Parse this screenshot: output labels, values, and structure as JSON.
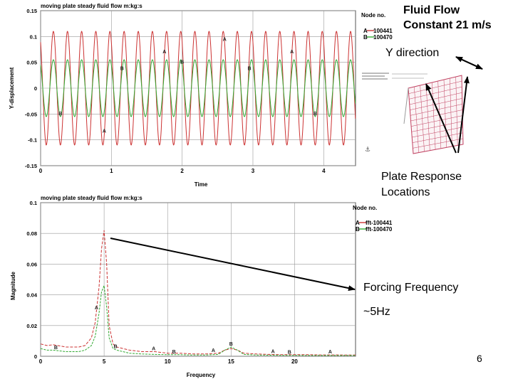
{
  "charts": [
    {
      "type": "line",
      "title": "moving plate steady fluid flow m:kg:s",
      "xlabel": "Time",
      "ylabel": "Y-displacement",
      "xlim": [
        0,
        4.45
      ],
      "ylim": [
        -0.15,
        0.15
      ],
      "x_ticks": [
        0,
        1,
        2,
        3,
        4
      ],
      "x_tick_labels": [
        "0",
        "1",
        "2",
        "3",
        "4"
      ],
      "y_ticks": [
        -0.15,
        -0.1,
        -0.05,
        0,
        0.05,
        0.1,
        0.15
      ],
      "y_tick_labels": [
        "-0.15",
        "-0.1",
        "-0.05",
        "0",
        "0.05",
        "0.1",
        "0.15"
      ],
      "grid": true,
      "legend_title": "Node no.",
      "series": [
        {
          "name": "100441",
          "marker": "A",
          "color": "#cc3333",
          "frequency_hz": 5,
          "amplitude": 0.11,
          "marker_x": [
            0.9,
            1.75,
            3.55,
            2.6
          ]
        },
        {
          "name": "100470",
          "marker": "B",
          "color": "#33aa33",
          "frequency_hz": 5,
          "amplitude": 0.055,
          "marker_x": [
            0.28,
            1.15,
            2.0,
            2.95,
            3.88
          ]
        }
      ]
    },
    {
      "type": "line",
      "title": "moving plate steady fluid flow m:kg:s",
      "xlabel": "Frequency",
      "ylabel": "Magnitude",
      "xlim": [
        0,
        24.8
      ],
      "ylim": [
        0,
        0.1
      ],
      "x_ticks": [
        0,
        5,
        10,
        15,
        20
      ],
      "x_tick_labels": [
        "0",
        "5",
        "10",
        "15",
        "20"
      ],
      "y_ticks": [
        0,
        0.02,
        0.04,
        0.06,
        0.08,
        0.1
      ],
      "y_tick_labels": [
        "0",
        "0.02",
        "0.04",
        "0.06",
        "0.08",
        "0.1"
      ],
      "grid": true,
      "legend_title": "Node no.",
      "series": [
        {
          "name": "fft-100441",
          "marker": "A",
          "color": "#cc3333",
          "x": [
            0,
            0.5,
            1,
            2,
            3,
            3.5,
            4,
            4.3,
            4.6,
            4.8,
            5,
            5.2,
            5.4,
            5.7,
            6,
            7,
            8,
            9,
            10,
            11,
            12,
            13,
            14,
            14.5,
            15,
            15.5,
            16,
            17,
            18,
            19,
            20,
            21,
            22,
            23,
            24.8
          ],
          "y": [
            0.008,
            0.007,
            0.0075,
            0.006,
            0.006,
            0.007,
            0.012,
            0.022,
            0.045,
            0.07,
            0.082,
            0.06,
            0.02,
            0.008,
            0.006,
            0.004,
            0.003,
            0.003,
            0.002,
            0.002,
            0.0015,
            0.0015,
            0.002,
            0.004,
            0.005,
            0.004,
            0.002,
            0.0015,
            0.0012,
            0.001,
            0.001,
            0.001,
            0.0009,
            0.0009,
            0.0008
          ],
          "marker_x": [
            4.4,
            8.9,
            13.6,
            18.3,
            22.8
          ]
        },
        {
          "name": "fft-100470",
          "marker": "B",
          "color": "#33aa33",
          "x": [
            0,
            0.5,
            1,
            2,
            3,
            3.5,
            4,
            4.3,
            4.6,
            4.8,
            5,
            5.2,
            5.4,
            5.7,
            6,
            7,
            8,
            9,
            10,
            11,
            12,
            13,
            14,
            14.5,
            15,
            15.5,
            16,
            17,
            18,
            19,
            20,
            21,
            22,
            23,
            24.8
          ],
          "y": [
            0.005,
            0.004,
            0.004,
            0.003,
            0.003,
            0.004,
            0.007,
            0.013,
            0.028,
            0.042,
            0.046,
            0.032,
            0.012,
            0.005,
            0.004,
            0.002,
            0.0015,
            0.0012,
            0.001,
            0.001,
            0.0008,
            0.0008,
            0.0012,
            0.004,
            0.006,
            0.004,
            0.0012,
            0.0008,
            0.0007,
            0.0006,
            0.0006,
            0.0005,
            0.0005,
            0.0005,
            0.0005
          ],
          "marker_x": [
            1.2,
            5.9,
            10.5,
            15.0,
            19.6
          ]
        }
      ]
    }
  ],
  "annotations": {
    "fluid_flow_line1": "Fluid Flow",
    "fluid_flow_line2": "Constant 21 m/s",
    "y_direction": "Y direction",
    "plate_response_line1": "Plate Response",
    "plate_response_line2": "Locations",
    "forcing_frequency": "Forcing Frequency",
    "approx_freq": "~5Hz",
    "page_number": "6"
  },
  "colors": {
    "axis": "#555555",
    "grid": "#999999",
    "mesh": "#c04060",
    "arrow": "#000000"
  }
}
